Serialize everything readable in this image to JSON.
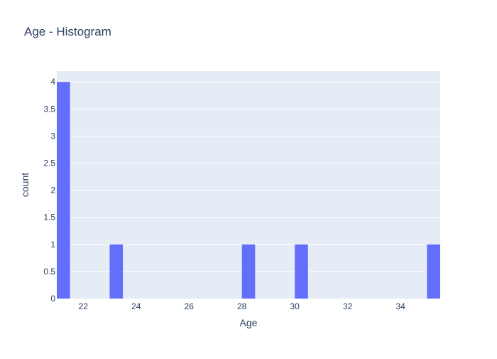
{
  "chart_data": {
    "type": "bar",
    "title": "Age - Histogram",
    "xlabel": "Age",
    "ylabel": "count",
    "xlim": [
      21,
      35.5
    ],
    "ylim": [
      0,
      4.2
    ],
    "x_ticks": [
      22,
      24,
      26,
      28,
      30,
      32,
      34
    ],
    "y_ticks": [
      0,
      0.5,
      1,
      1.5,
      2,
      2.5,
      3,
      3.5,
      4
    ],
    "bin_width": 0.5,
    "bins": [
      {
        "start": 21,
        "end": 21.5,
        "count": 4
      },
      {
        "start": 23,
        "end": 23.5,
        "count": 1
      },
      {
        "start": 28,
        "end": 28.5,
        "count": 1
      },
      {
        "start": 30,
        "end": 30.5,
        "count": 1
      },
      {
        "start": 35,
        "end": 35.5,
        "count": 1
      }
    ],
    "grid": true,
    "colors": {
      "bar": "#636efa",
      "plot_bg": "#e5ecf6",
      "grid": "#ffffff",
      "text": "#2a3f5f"
    }
  }
}
